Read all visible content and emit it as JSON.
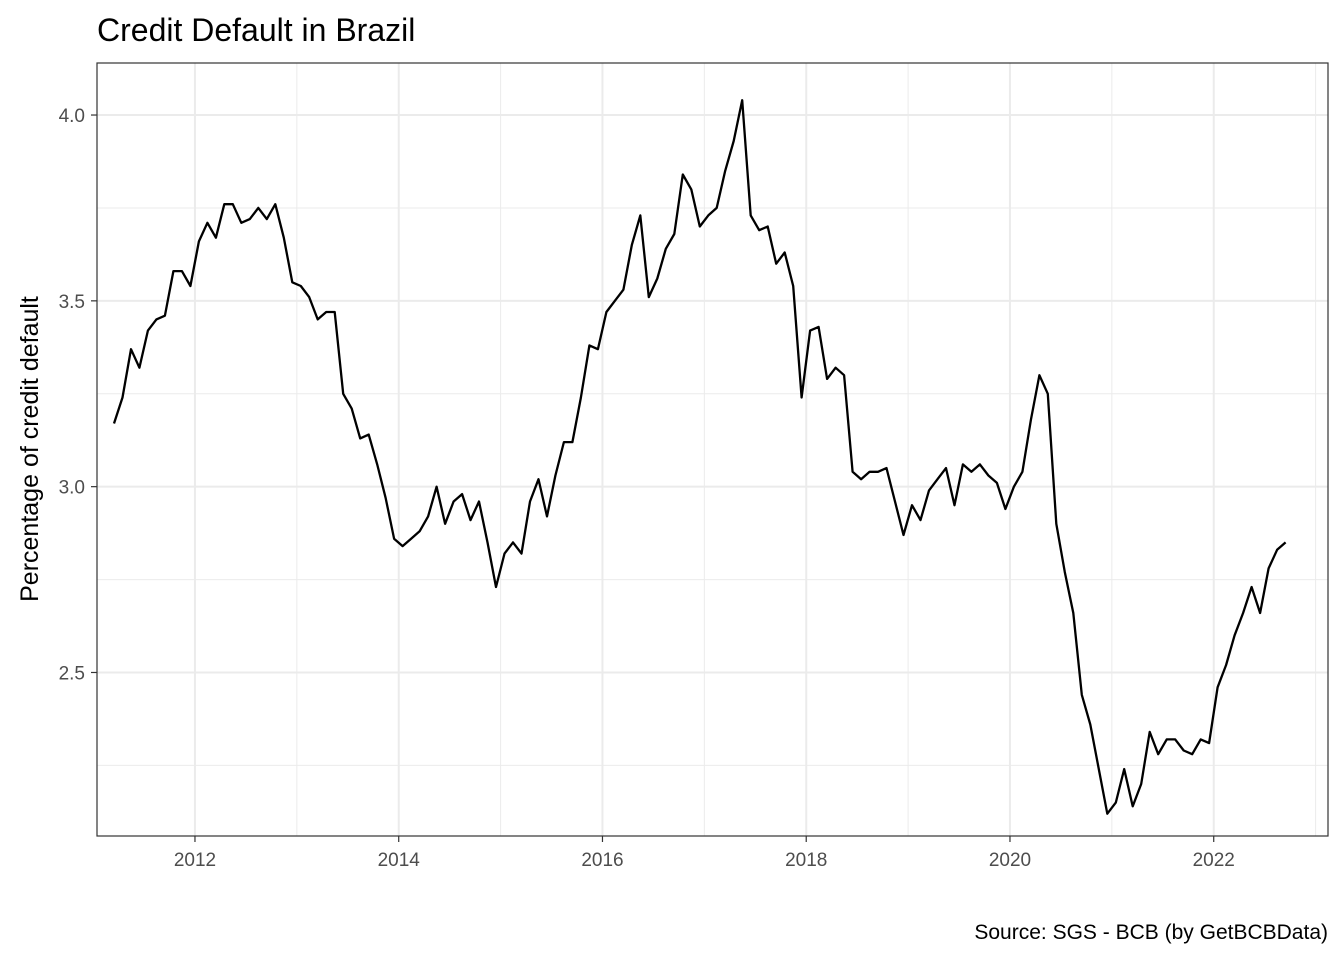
{
  "chart_data": {
    "type": "line",
    "title": "Credit Default in Brazil",
    "caption": "Source: SGS - BCB (by GetBCBData)",
    "xlabel": "",
    "ylabel": "Percentage of credit default",
    "xlim": [
      "2011-01-15",
      "2023-02-15"
    ],
    "ylim": [
      2.06,
      4.14
    ],
    "x_ticks": [
      2012,
      2014,
      2016,
      2018,
      2020,
      2022
    ],
    "x_tick_labels": [
      "2012",
      "2014",
      "2016",
      "2018",
      "2020",
      "2022"
    ],
    "y_ticks": [
      2.5,
      3.0,
      3.5,
      4.0
    ],
    "y_tick_labels": [
      "2.5",
      "3.0",
      "3.5",
      "4.0"
    ],
    "grid": true,
    "line_color": "#000000",
    "series": [
      {
        "x": [
          "2011-03",
          "2011-04",
          "2011-05",
          "2011-06",
          "2011-07",
          "2011-08",
          "2011-09",
          "2011-10",
          "2011-11",
          "2011-12",
          "2012-01",
          "2012-02",
          "2012-03",
          "2012-04",
          "2012-05",
          "2012-06",
          "2012-07",
          "2012-08",
          "2012-09",
          "2012-10",
          "2012-11",
          "2012-12",
          "2013-01",
          "2013-02",
          "2013-03",
          "2013-04",
          "2013-05",
          "2013-06",
          "2013-07",
          "2013-08",
          "2013-09",
          "2013-10",
          "2013-11",
          "2013-12",
          "2014-01",
          "2014-02",
          "2014-03",
          "2014-04",
          "2014-05",
          "2014-06",
          "2014-07",
          "2014-08",
          "2014-09",
          "2014-10",
          "2014-11",
          "2014-12",
          "2015-01",
          "2015-02",
          "2015-03",
          "2015-04",
          "2015-05",
          "2015-06",
          "2015-07",
          "2015-08",
          "2015-09",
          "2015-10",
          "2015-11",
          "2015-12",
          "2016-01",
          "2016-02",
          "2016-03",
          "2016-04",
          "2016-05",
          "2016-06",
          "2016-07",
          "2016-08",
          "2016-09",
          "2016-10",
          "2016-11",
          "2016-12",
          "2017-01",
          "2017-02",
          "2017-03",
          "2017-04",
          "2017-05",
          "2017-06",
          "2017-07",
          "2017-08",
          "2017-09",
          "2017-10",
          "2017-11",
          "2017-12",
          "2018-01",
          "2018-02",
          "2018-03",
          "2018-04",
          "2018-05",
          "2018-06",
          "2018-07",
          "2018-08",
          "2018-09",
          "2018-10",
          "2018-11",
          "2018-12",
          "2019-01",
          "2019-02",
          "2019-03",
          "2019-04",
          "2019-05",
          "2019-06",
          "2019-07",
          "2019-08",
          "2019-09",
          "2019-10",
          "2019-11",
          "2019-12",
          "2020-01",
          "2020-02",
          "2020-03",
          "2020-04",
          "2020-05",
          "2020-06",
          "2020-07",
          "2020-08",
          "2020-09",
          "2020-10",
          "2020-11",
          "2020-12",
          "2021-01",
          "2021-02",
          "2021-03",
          "2021-04",
          "2021-05",
          "2021-06",
          "2021-07",
          "2021-08",
          "2021-09",
          "2021-10",
          "2021-11",
          "2021-12",
          "2022-01",
          "2022-02",
          "2022-03",
          "2022-04",
          "2022-05",
          "2022-06",
          "2022-07",
          "2022-08",
          "2022-09"
        ],
        "values": [
          3.17,
          3.24,
          3.37,
          3.32,
          3.42,
          3.45,
          3.46,
          3.58,
          3.58,
          3.54,
          3.66,
          3.71,
          3.67,
          3.76,
          3.76,
          3.71,
          3.72,
          3.75,
          3.72,
          3.76,
          3.67,
          3.55,
          3.54,
          3.51,
          3.45,
          3.47,
          3.47,
          3.25,
          3.21,
          3.13,
          3.14,
          3.06,
          2.97,
          2.86,
          2.84,
          2.86,
          2.88,
          2.92,
          3.0,
          2.9,
          2.96,
          2.98,
          2.91,
          2.96,
          2.85,
          2.73,
          2.82,
          2.85,
          2.82,
          2.96,
          3.02,
          2.92,
          3.03,
          3.12,
          3.12,
          3.24,
          3.38,
          3.37,
          3.47,
          3.5,
          3.53,
          3.65,
          3.73,
          3.51,
          3.56,
          3.64,
          3.68,
          3.84,
          3.8,
          3.7,
          3.73,
          3.75,
          3.85,
          3.93,
          4.04,
          3.73,
          3.69,
          3.7,
          3.6,
          3.63,
          3.54,
          3.24,
          3.42,
          3.43,
          3.29,
          3.32,
          3.3,
          3.04,
          3.02,
          3.04,
          3.04,
          3.05,
          2.96,
          2.87,
          2.95,
          2.91,
          2.99,
          3.02,
          3.05,
          2.95,
          3.06,
          3.04,
          3.06,
          3.03,
          3.01,
          2.94,
          3.0,
          3.04,
          3.18,
          3.3,
          3.25,
          2.9,
          2.77,
          2.66,
          2.44,
          2.36,
          2.24,
          2.12,
          2.15,
          2.24,
          2.14,
          2.2,
          2.34,
          2.28,
          2.32,
          2.32,
          2.29,
          2.28,
          2.32,
          2.31,
          2.46,
          2.52,
          2.6,
          2.66,
          2.73,
          2.66,
          2.78,
          2.83,
          2.85
        ]
      }
    ]
  }
}
